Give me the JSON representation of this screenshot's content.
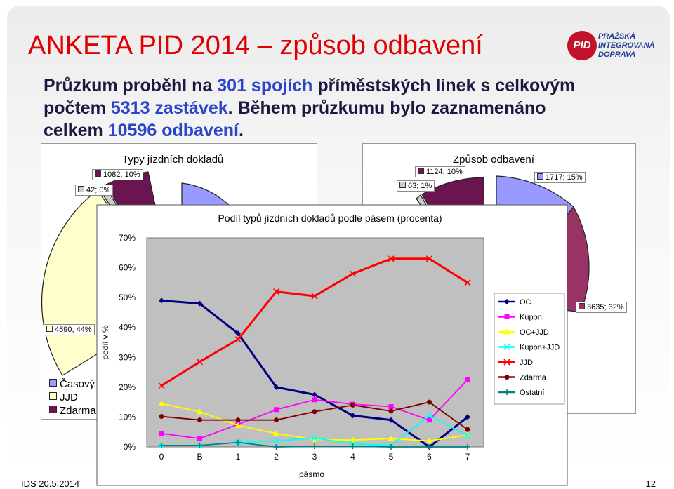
{
  "slide": {
    "title": "ANKETA PID 2014 – způsob odbavení",
    "intro_1": "Průzkum proběhl na ",
    "intro_2": "301 spojích",
    "intro_3": " příměstských linek s celkovým počtem ",
    "intro_4": "5313 zastávek",
    "intro_5": ". Během průzkumu bylo zaznamenáno celkem ",
    "intro_6": "10596 odbavení",
    "intro_7": ".",
    "logo_mark": "PID",
    "logo_lines": [
      "PRAŽSKÁ",
      "INTEGROVANÁ",
      "DOPRAVA"
    ],
    "footer_left": "IDS 20.5.2014",
    "page_number": "12"
  },
  "colors": {
    "title": "#e00000",
    "highlight": "#2a45c8",
    "plot_bg": "#c0c0c0"
  },
  "chart_data": [
    {
      "type": "pie",
      "title": "Typy jízdních dokladů",
      "visible_labels": [
        "1082; 10%",
        "42; 0%",
        "4590; 44%"
      ],
      "visible_slice_colors": [
        "#6b1550",
        "#cccccc",
        "#ffffcc",
        "#9999ff"
      ],
      "legend": [
        "Časový",
        "JJD",
        "Zdarma"
      ],
      "legend_colors": [
        "#9999ff",
        "#ffffcc",
        "#6b1550"
      ]
    },
    {
      "type": "pie",
      "title": "Způsob odbavení",
      "visible_labels": [
        "1124; 10%",
        "63; 1%",
        "1717; 15%",
        "3635; 32%"
      ],
      "visible_slice_colors": [
        "#6b1550",
        "#cccccc",
        "#9999ff",
        "#993366"
      ]
    },
    {
      "type": "line",
      "title": "Podíl typů jízdních dokladů podle pásem (procenta)",
      "xlabel": "pásmo",
      "ylabel": "podíl v %",
      "categories": [
        "0",
        "B",
        "1",
        "2",
        "3",
        "4",
        "5",
        "6",
        "7"
      ],
      "ylim": [
        0,
        70
      ],
      "y_ticks": [
        "0%",
        "10%",
        "20%",
        "30%",
        "40%",
        "50%",
        "60%",
        "70%"
      ],
      "grid": false,
      "legend_position": "right",
      "series": [
        {
          "name": "OC",
          "color": "#000080",
          "marker": "diamond",
          "values": [
            49,
            48,
            38,
            20,
            17.5,
            10.5,
            9,
            0,
            10
          ]
        },
        {
          "name": "Kupon",
          "color": "#ff00ff",
          "marker": "square",
          "values": [
            4.5,
            2.8,
            7.5,
            12.5,
            15.8,
            14.3,
            13.5,
            9,
            22.5
          ]
        },
        {
          "name": "OC+JJD",
          "color": "#ffff00",
          "marker": "triangle",
          "values": [
            14.5,
            11.8,
            7.2,
            4.5,
            2.5,
            2.3,
            2.8,
            2,
            4
          ]
        },
        {
          "name": "Kupon+JJD",
          "color": "#00ffff",
          "marker": "x",
          "values": [
            0.5,
            0.5,
            1.5,
            2,
            3,
            1,
            0.5,
            10.5,
            3.8
          ]
        },
        {
          "name": "JJD",
          "color": "#ff0000",
          "marker": "x",
          "values": [
            20.5,
            28.5,
            36,
            52,
            50.5,
            58,
            63,
            63,
            55
          ]
        },
        {
          "name": "Zdarma",
          "color": "#800000",
          "marker": "circle",
          "values": [
            10.2,
            9,
            9,
            9,
            11.8,
            14,
            12,
            15,
            5.8
          ]
        },
        {
          "name": "Ostatní",
          "color": "#008080",
          "marker": "plus",
          "values": [
            0.5,
            0.5,
            1.5,
            0,
            0.2,
            0.2,
            0,
            0,
            0
          ]
        }
      ]
    }
  ]
}
